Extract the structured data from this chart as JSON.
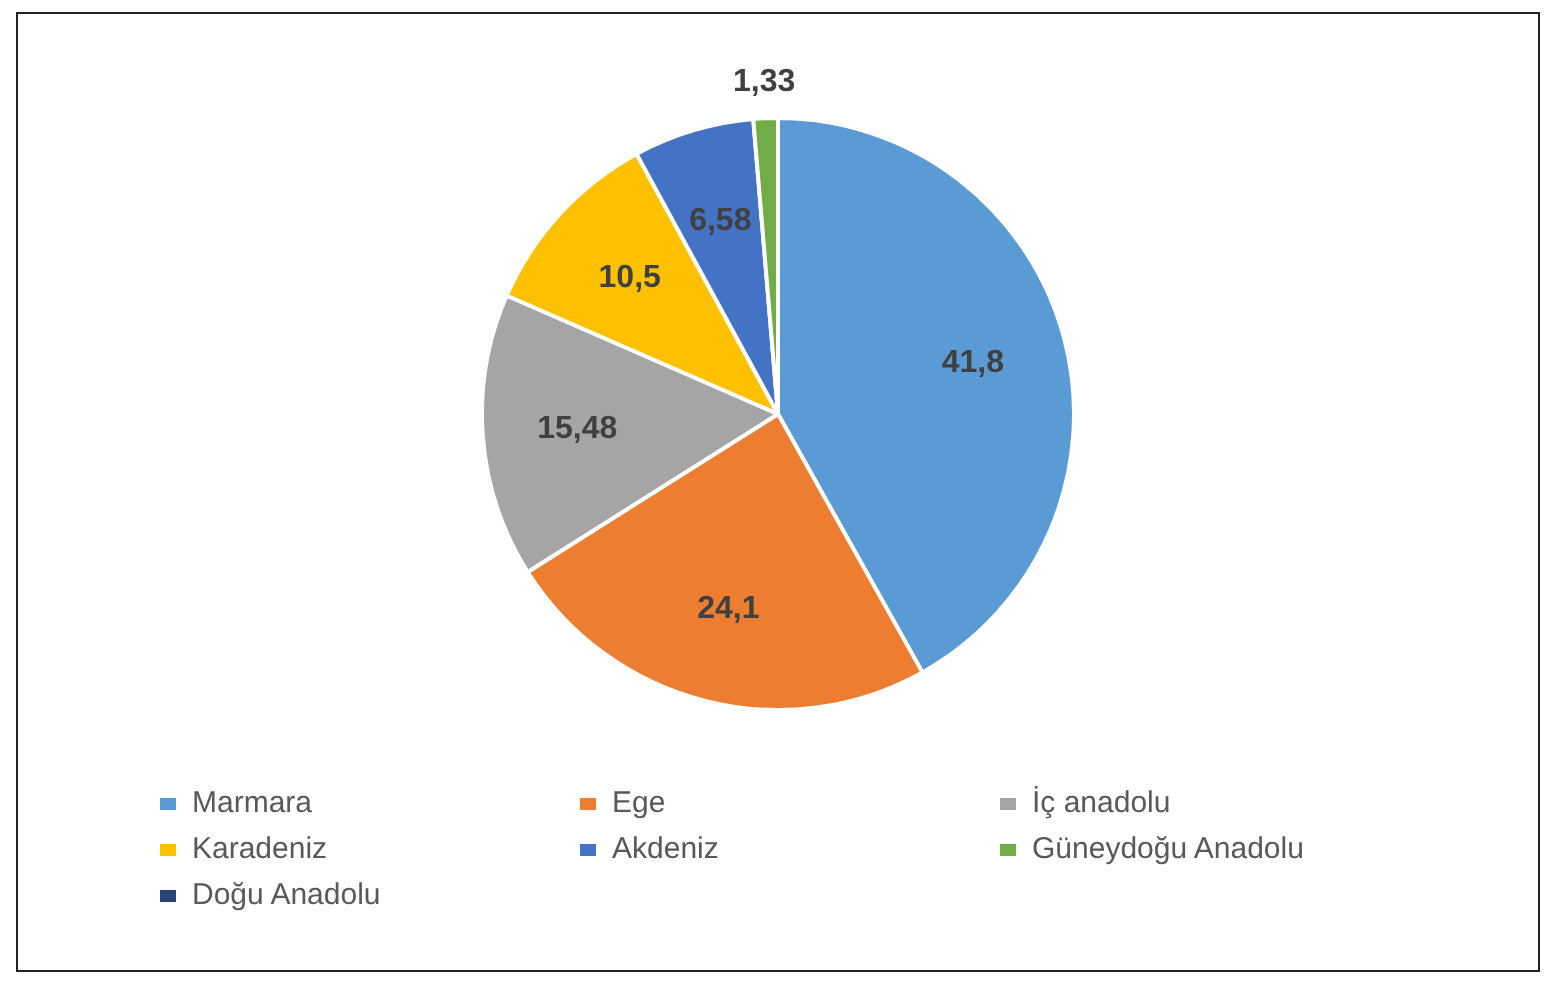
{
  "chart_data": {
    "type": "pie",
    "categories": [
      "Marmara",
      "Ege",
      "İç anadolu",
      "Karadeniz",
      "Akdeniz",
      "Güneydoğu Anadolu",
      "Doğu Anadolu"
    ],
    "values": [
      41.8,
      24.1,
      15.48,
      10.5,
      6.58,
      1.33,
      null
    ],
    "value_labels": [
      "41,8",
      "24,1",
      "15,48",
      "10,5",
      "6,58",
      "1,33",
      null
    ],
    "colors": [
      "#5b9bd5",
      "#ed7d31",
      "#a5a5a5",
      "#ffc000",
      "#4472c4",
      "#70ad47",
      "#264478"
    ],
    "legend": "bottom"
  }
}
